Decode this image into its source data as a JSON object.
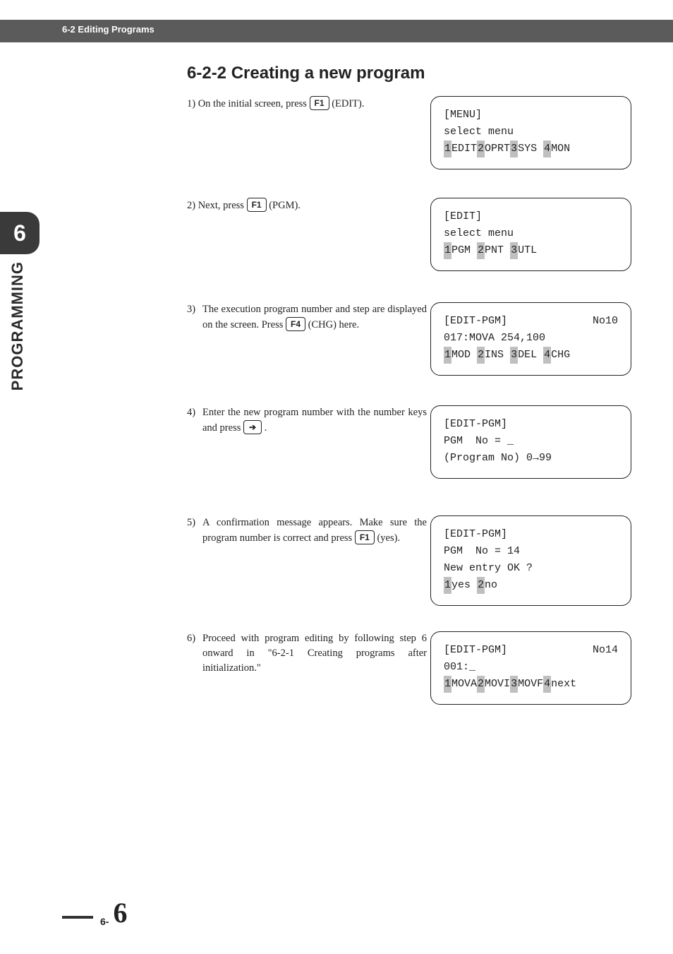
{
  "colors": {
    "header_bg": "#5b5b5b",
    "tab_bg": "#3a3a3a",
    "text": "#222222",
    "hi_bg": "#bfbfbf",
    "page_bg": "#ffffff"
  },
  "header": {
    "crumb": "6-2 Editing Programs"
  },
  "side": {
    "chapter_number": "6",
    "vertical_label": "PROGRAMMING"
  },
  "heading": "6-2-2  Creating a new program",
  "keys": {
    "f1": "F1",
    "f4": "F4"
  },
  "steps": {
    "s1a": "1)  On the initial screen, press ",
    "s1b": " (EDIT).",
    "s2a": "2)  Next, press ",
    "s2b": " (PGM).",
    "s3a": "3)",
    "s3body1": "The execution program number and step are displayed on the screen. Press ",
    "s3b": " (CHG) here.",
    "s4a": "4)",
    "s4body1": "Enter the new program number with the number keys and press ",
    "s4b": " .",
    "s5a": "5)",
    "s5body1": "A confirmation message appears. Make sure the program number is correct and press ",
    "s5b": " (yes).",
    "s6a": "6)",
    "s6body1": "Proceed with program editing by following step 6 onward in \"6-2-1 Creating programs after initialization.\""
  },
  "lcds": {
    "p1": {
      "l1": "[MENU]",
      "l2": "select menu",
      "l3": "",
      "soft": [
        {
          "n": "1",
          "t": "EDIT"
        },
        {
          "n": "2",
          "t": "OPRT"
        },
        {
          "n": "3",
          "t": "SYS "
        },
        {
          "n": "4",
          "t": "MON"
        }
      ]
    },
    "p2": {
      "l1": "[EDIT]",
      "l2": "select menu",
      "l3": "",
      "soft": [
        {
          "n": "1",
          "t": "PGM "
        },
        {
          "n": "2",
          "t": "PNT "
        },
        {
          "n": "3",
          "t": "UTL"
        }
      ]
    },
    "p3": {
      "l1a": "[EDIT-PGM]",
      "l1b": "No10",
      "l2": "017:MOVA 254,100",
      "l3": "",
      "soft": [
        {
          "n": "1",
          "t": "MOD "
        },
        {
          "n": "2",
          "t": "INS "
        },
        {
          "n": "3",
          "t": "DEL "
        },
        {
          "n": "4",
          "t": "CHG"
        }
      ]
    },
    "p4": {
      "l1": "[EDIT-PGM]",
      "l2": "PGM  No = _",
      "l3": "(Program No) 0→99",
      "l4": ""
    },
    "p5": {
      "l1": "[EDIT-PGM]",
      "l2": "PGM  No = 14",
      "l3": "New entry OK ?",
      "soft": [
        {
          "n": "1",
          "t": "yes "
        },
        {
          "n": "2",
          "t": "no"
        }
      ]
    },
    "p6": {
      "l1a": "[EDIT-PGM]",
      "l1b": "No14",
      "l2": "001:_",
      "l3": "",
      "soft": [
        {
          "n": "1",
          "t": "MOVA"
        },
        {
          "n": "2",
          "t": "MOVI"
        },
        {
          "n": "3",
          "t": "MOVF"
        },
        {
          "n": "4",
          "t": "next"
        }
      ]
    }
  },
  "footer": {
    "prefix": "6-",
    "page": "6"
  }
}
